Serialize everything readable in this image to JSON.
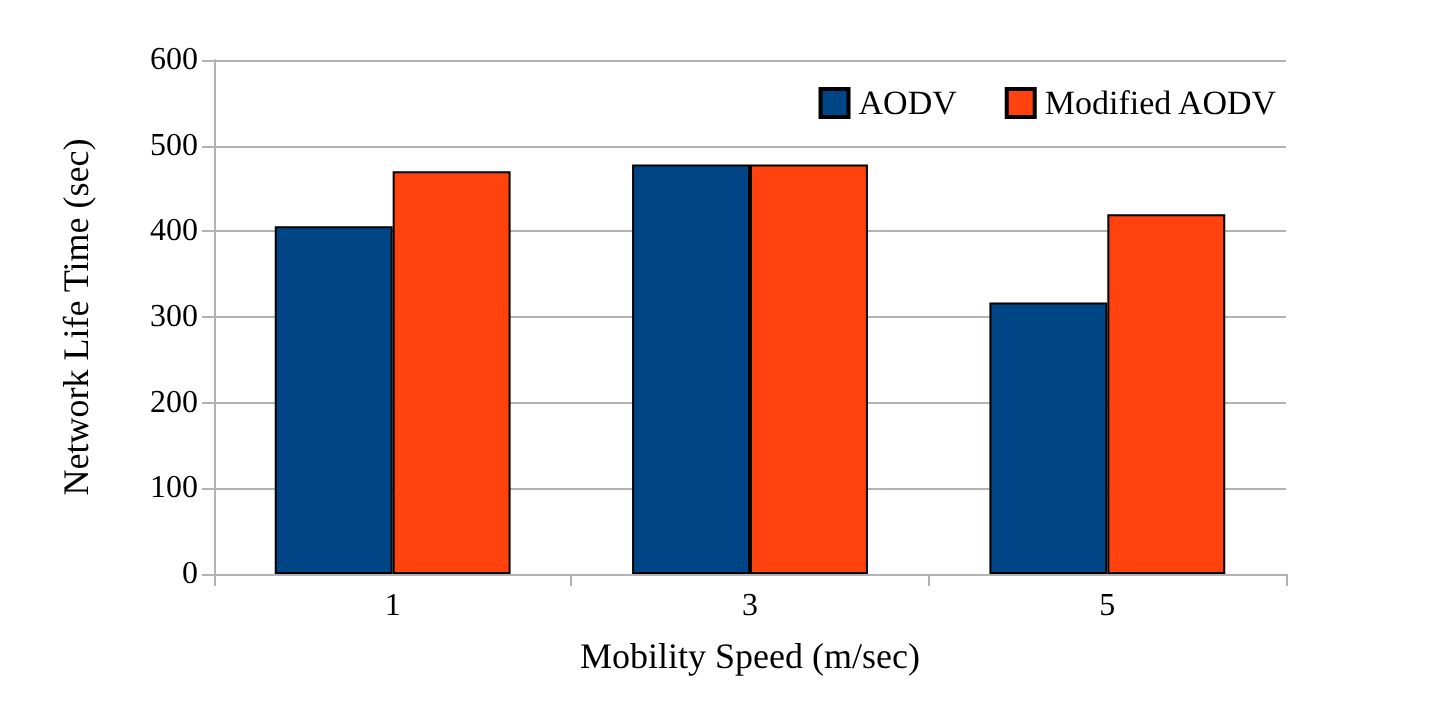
{
  "chart_data": {
    "type": "bar",
    "xlabel": "Mobility Speed (m/sec)",
    "ylabel": "Network Life Time (sec)",
    "categories": [
      "1",
      "3",
      "5"
    ],
    "series": [
      {
        "name": "AODV",
        "color": "#004586",
        "values": [
          406,
          478,
          317
        ]
      },
      {
        "name": "Modified AODV",
        "color": "#ff420e",
        "values": [
          470,
          478,
          420
        ]
      }
    ],
    "ylim": [
      0,
      600
    ],
    "yticks": [
      0,
      100,
      200,
      300,
      400,
      500,
      600
    ],
    "grid": "y",
    "legend": "top right"
  }
}
